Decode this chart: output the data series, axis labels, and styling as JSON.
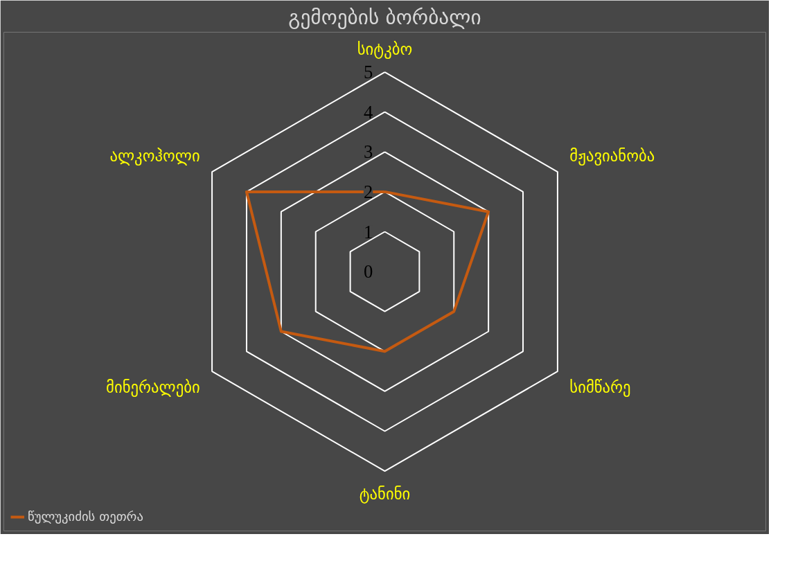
{
  "chart_data": {
    "type": "radar",
    "title": "გემოების ბორბალი",
    "categories": [
      "სიტკბო",
      "მჟავიანობა",
      "სიმწარე",
      "ტანინი",
      "მინერალები",
      "ალკოჰოლი"
    ],
    "series": [
      {
        "name": "წულუკიძის თეთრა",
        "color": "#c55a11",
        "values": [
          2,
          3,
          2,
          2,
          3,
          4
        ]
      }
    ],
    "ylim": [
      0,
      5
    ],
    "yticks": [
      0,
      1,
      2,
      3,
      4,
      5
    ],
    "grid": true,
    "legend": "bottom"
  }
}
